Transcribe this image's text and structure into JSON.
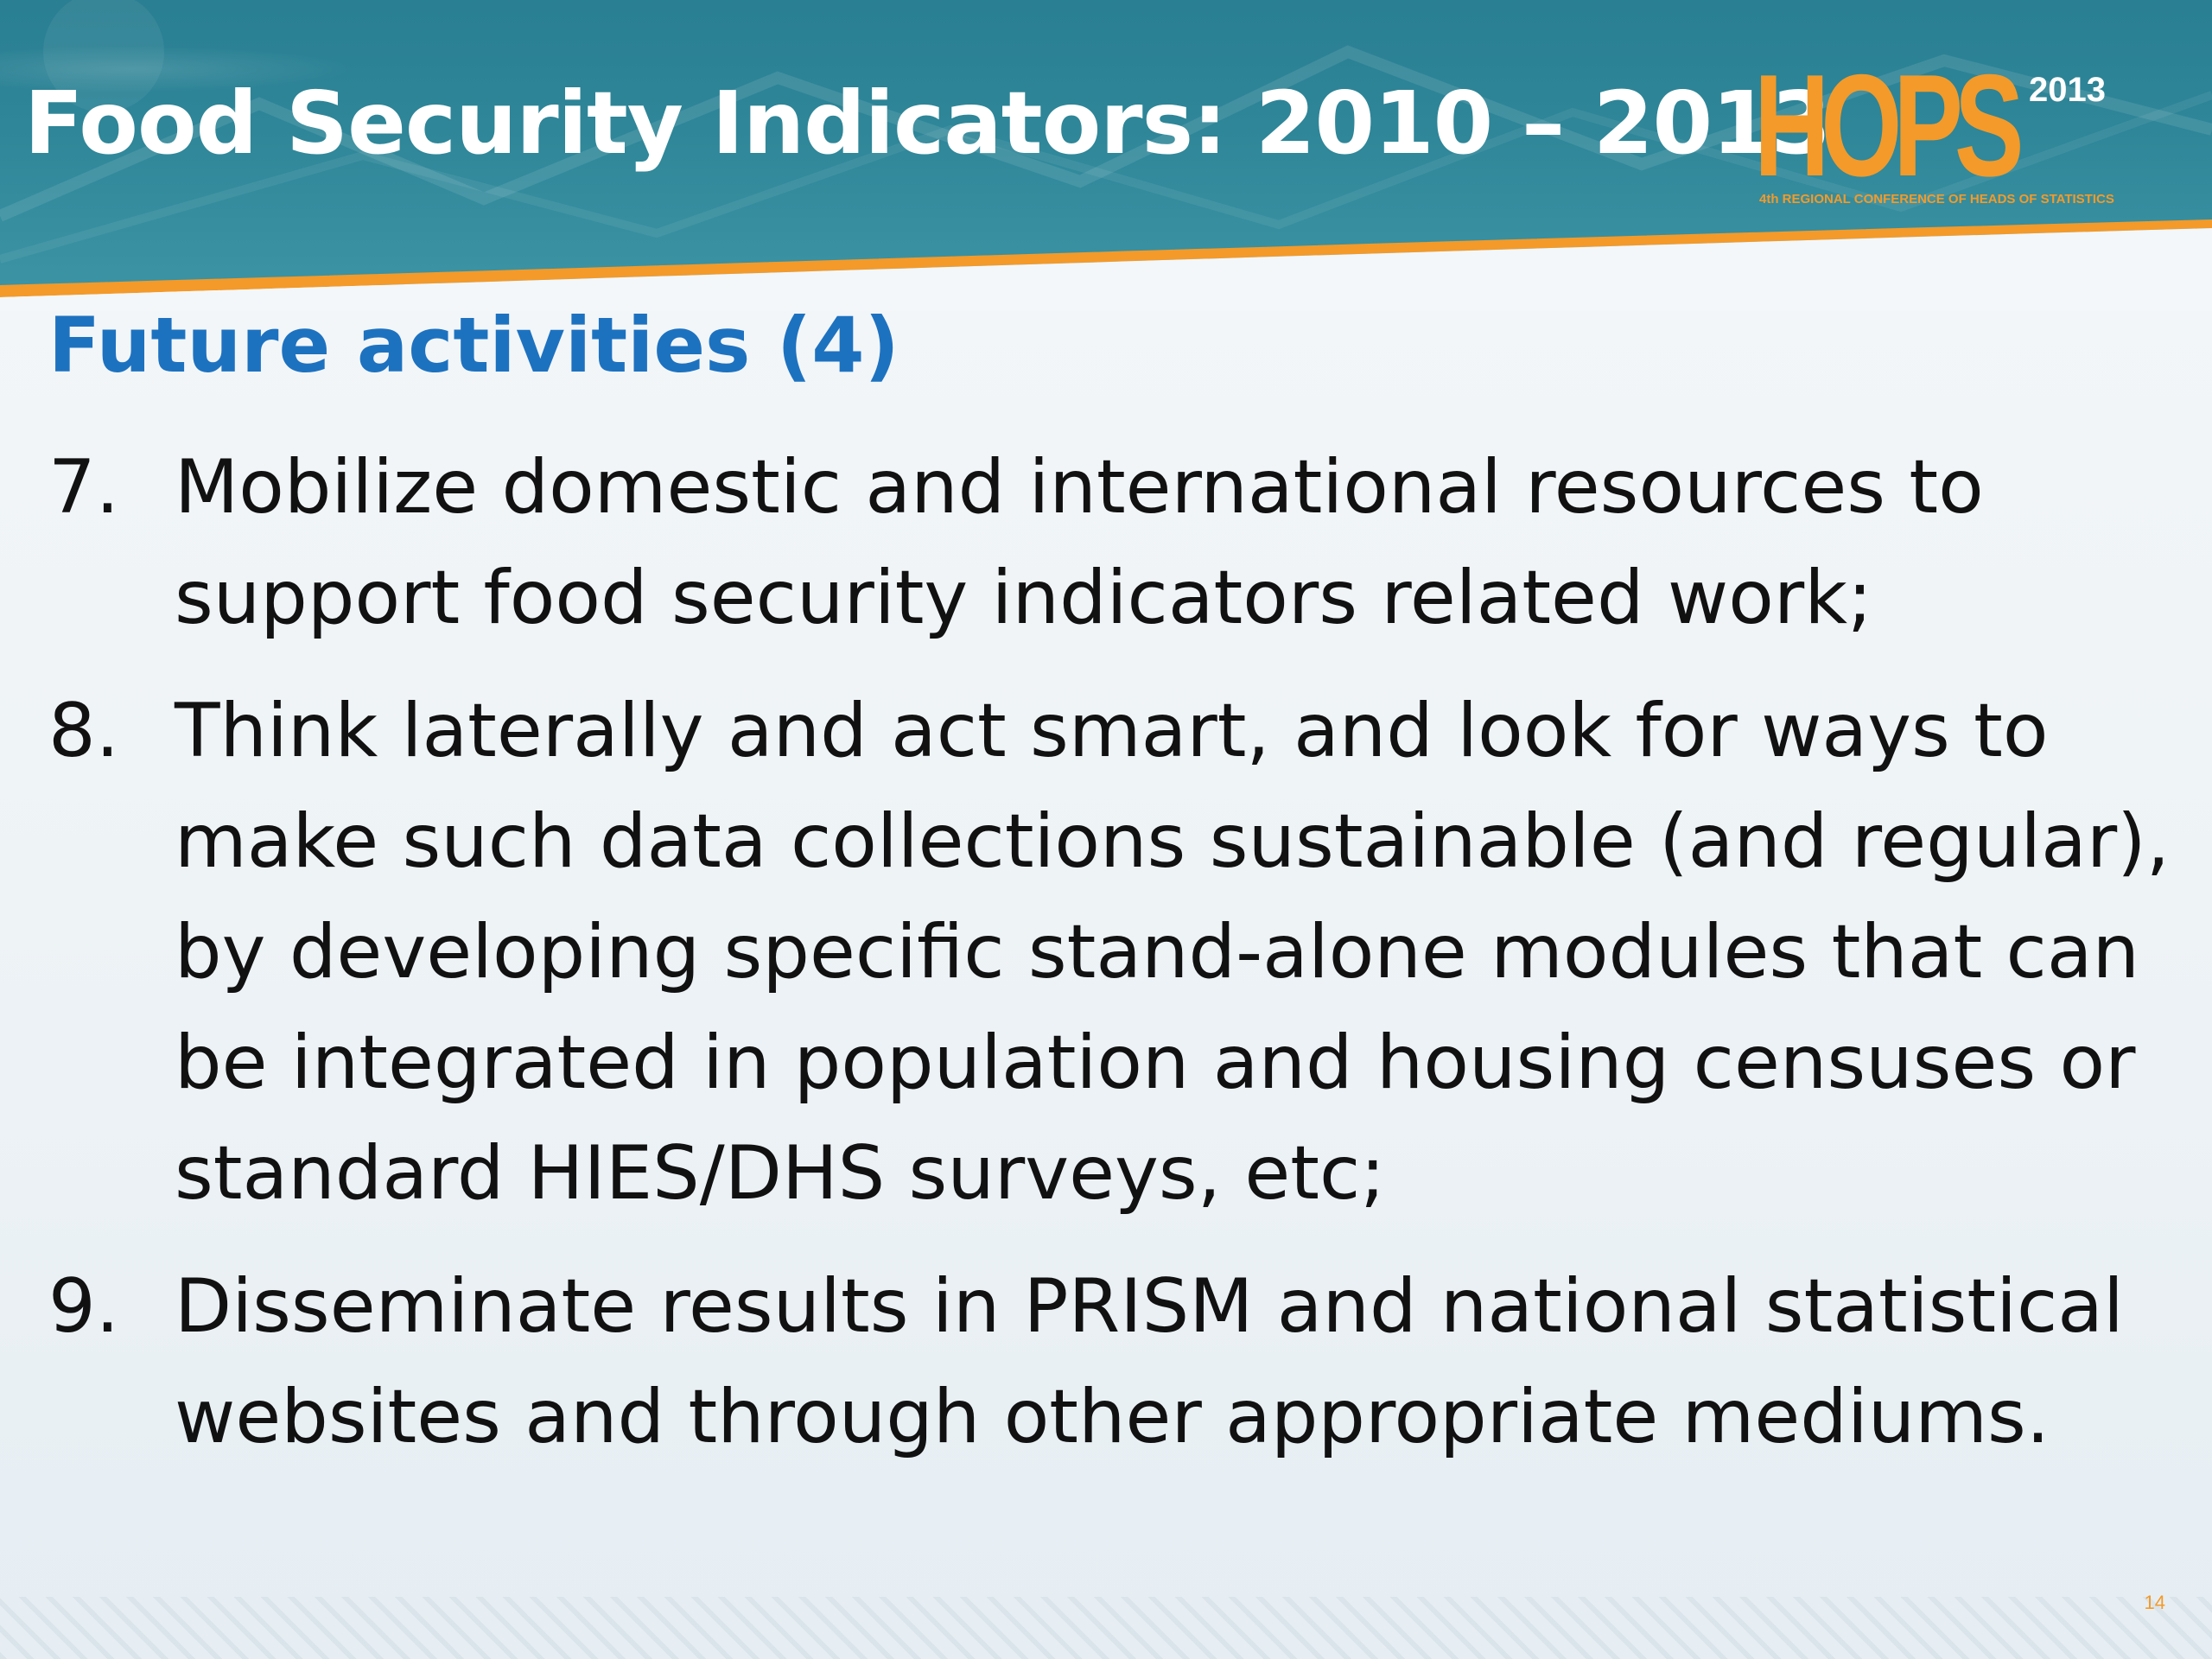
{
  "header": {
    "title": "Food Security Indicators: 2010 – 2013"
  },
  "logo": {
    "wordmark": "HOPS",
    "year": "2013",
    "subtitle": "4th REGIONAL CONFERENCE OF HEADS OF STATISTICS"
  },
  "body": {
    "subtitle": "Future activities (4)",
    "items": [
      {
        "number": "7.",
        "text": "Mobilize domestic and international resources to support food security indicators related work;"
      },
      {
        "number": "8.",
        "text": "Think laterally and act smart, and look for ways to make such data collections sustainable (and regular), by developing specific stand-alone modules that can be integrated in population and housing censuses or standard HIES/DHS surveys, etc;"
      },
      {
        "number": "9.",
        "text": "Disseminate results in PRISM and national statistical websites and through other appropriate mediums."
      }
    ]
  },
  "footer": {
    "page_number": "14"
  },
  "colors": {
    "header_teal": "#2e8698",
    "accent_orange": "#f39a2a",
    "subtitle_blue": "#1d72c0",
    "body_text": "#111111"
  }
}
